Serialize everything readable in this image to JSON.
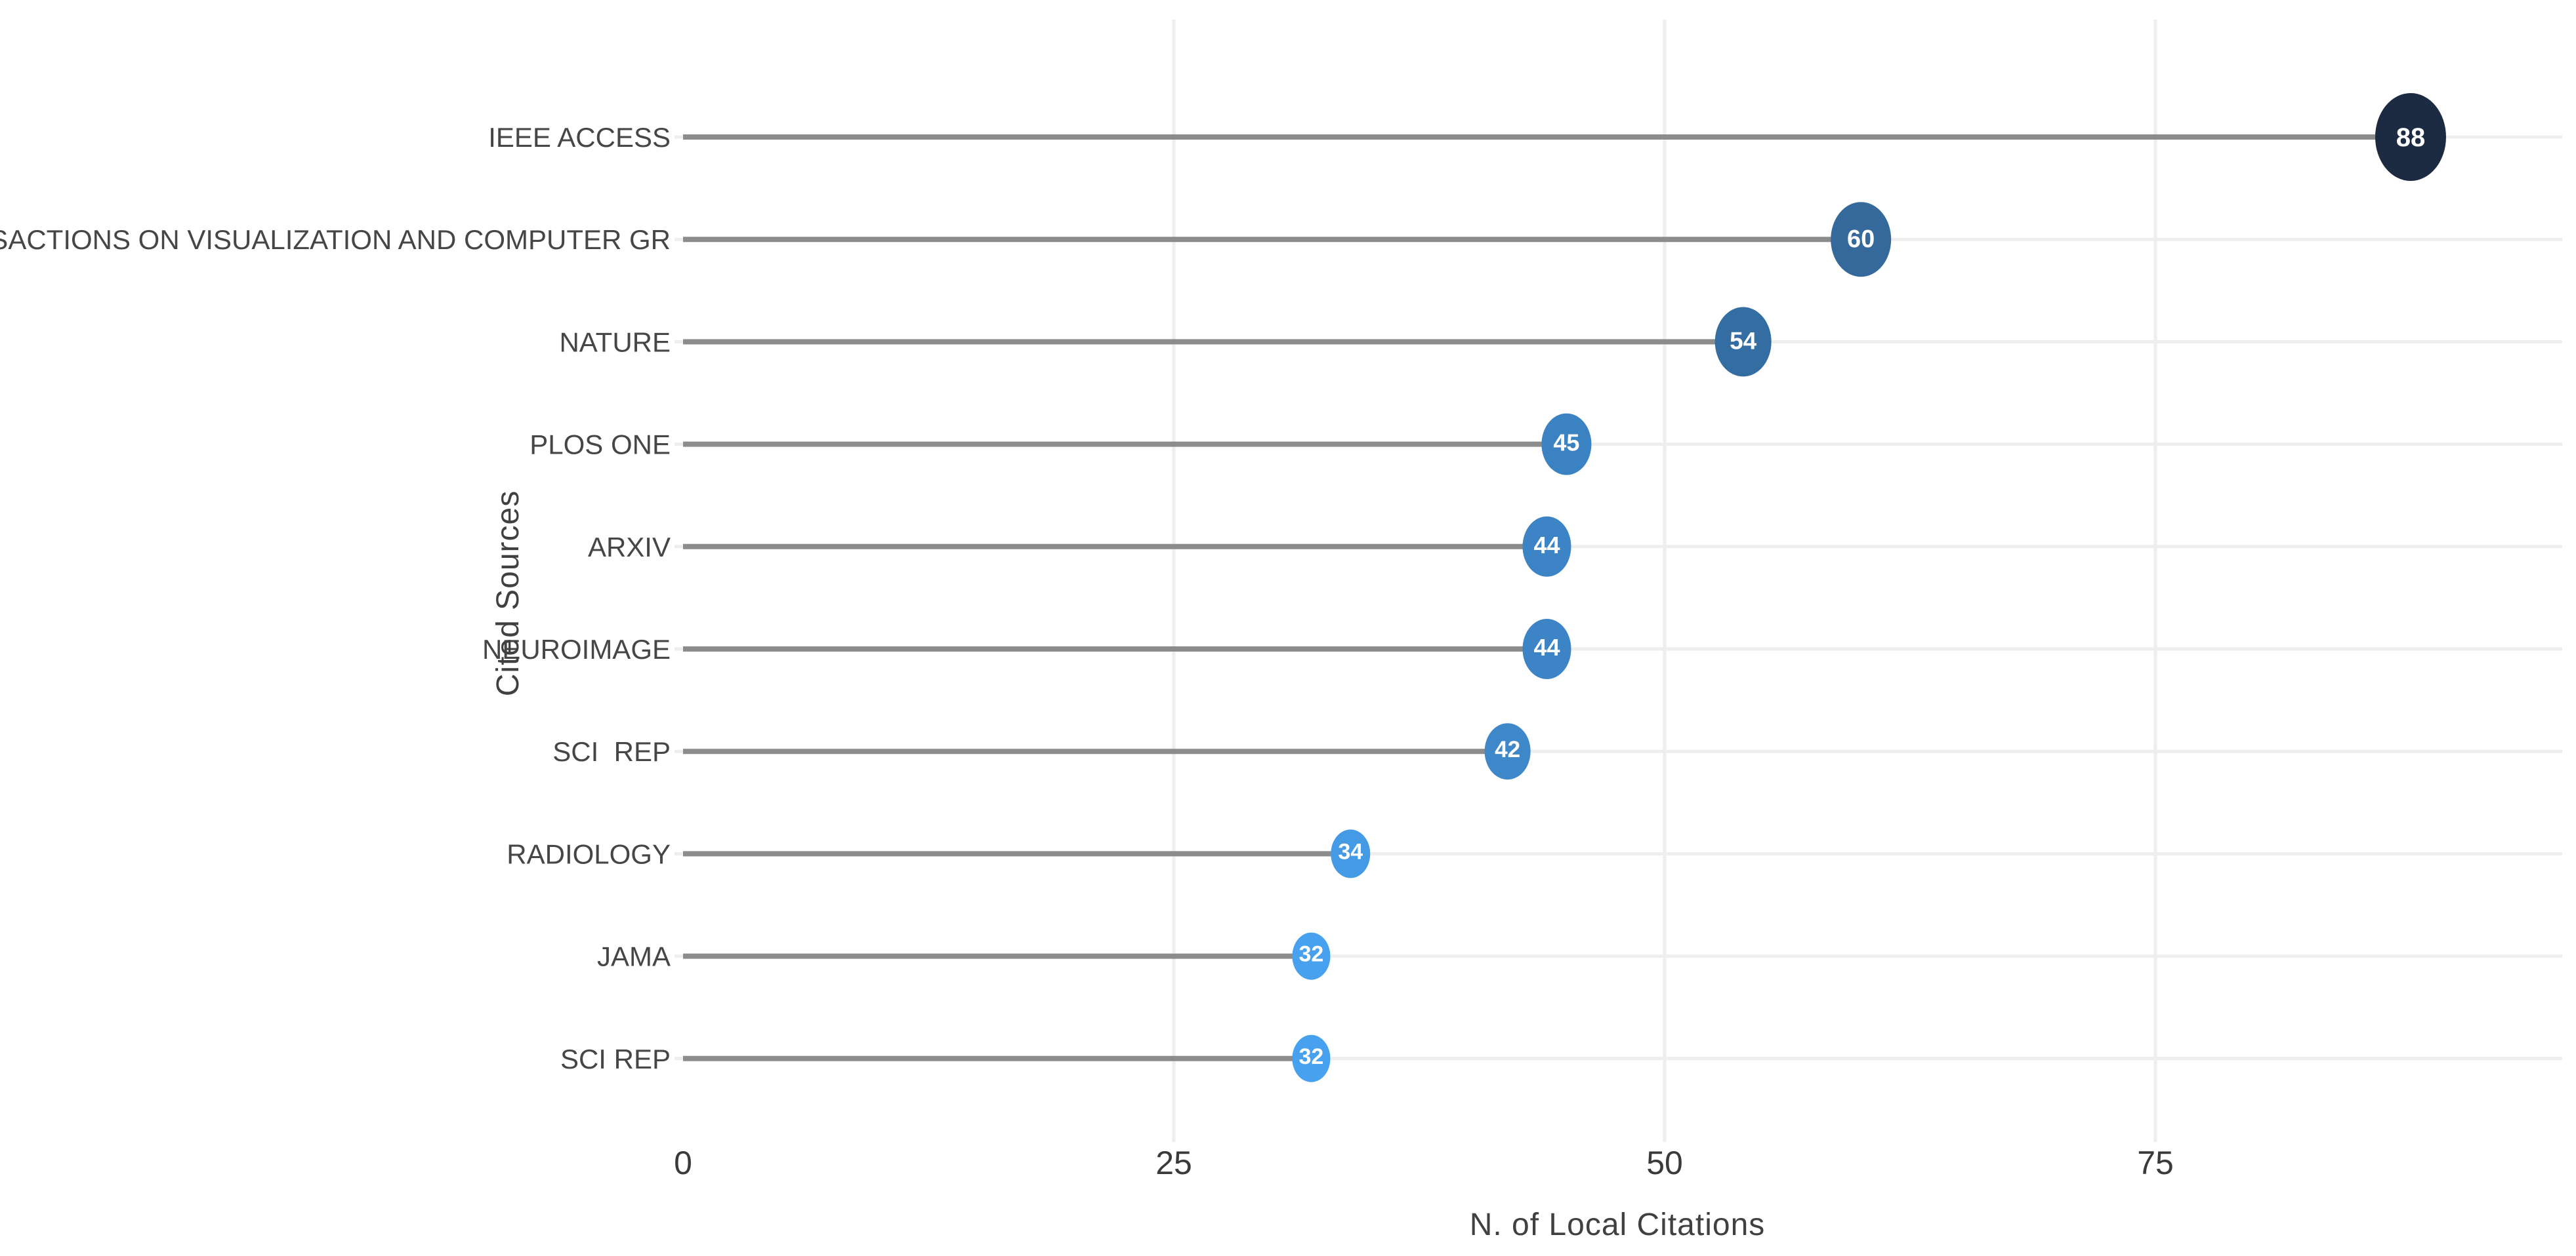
{
  "chart_data": {
    "type": "bar",
    "variant": "horizontal-lollipop",
    "title": "",
    "xlabel": "N. of Local Citations",
    "ylabel": "Cited Sources",
    "categories": [
      "IEEE ACCESS",
      "IEEE TRANSACTIONS ON VISUALIZATION AND COMPUTER GR",
      "NATURE",
      "PLOS ONE",
      "ARXIV",
      "NEUROIMAGE",
      "SCI  REP",
      "RADIOLOGY",
      "JAMA",
      "SCI REP"
    ],
    "values": [
      88,
      60,
      54,
      45,
      44,
      44,
      42,
      34,
      32,
      32
    ],
    "value_labels": [
      "88",
      "60",
      "54",
      "45",
      "44",
      "44",
      "42",
      "34",
      "32",
      "32"
    ],
    "point_colors": [
      "#1c2b42",
      "#35699c",
      "#336da1",
      "#3b82c3",
      "#3c84c6",
      "#3c84c6",
      "#3e88ca",
      "#459ae5",
      "#47a1ee",
      "#47a1ee"
    ],
    "marker_radii": [
      54,
      46,
      43,
      38,
      37,
      37,
      35,
      30,
      29,
      29
    ],
    "x_ticks": [
      "0",
      "25",
      "50",
      "75"
    ],
    "x_tick_values": [
      0,
      25,
      50,
      75
    ],
    "xlim": [
      0,
      95
    ],
    "grid": true,
    "legend": "none",
    "stem_color": "#8c8c8c",
    "grid_color": "#eeeeee",
    "value_text_color": "#ffffff",
    "tick_text_color": "#3a3a3a",
    "category_text_color": "#464646",
    "axis_title_color": "#404040",
    "background_color": "#ffffff"
  }
}
